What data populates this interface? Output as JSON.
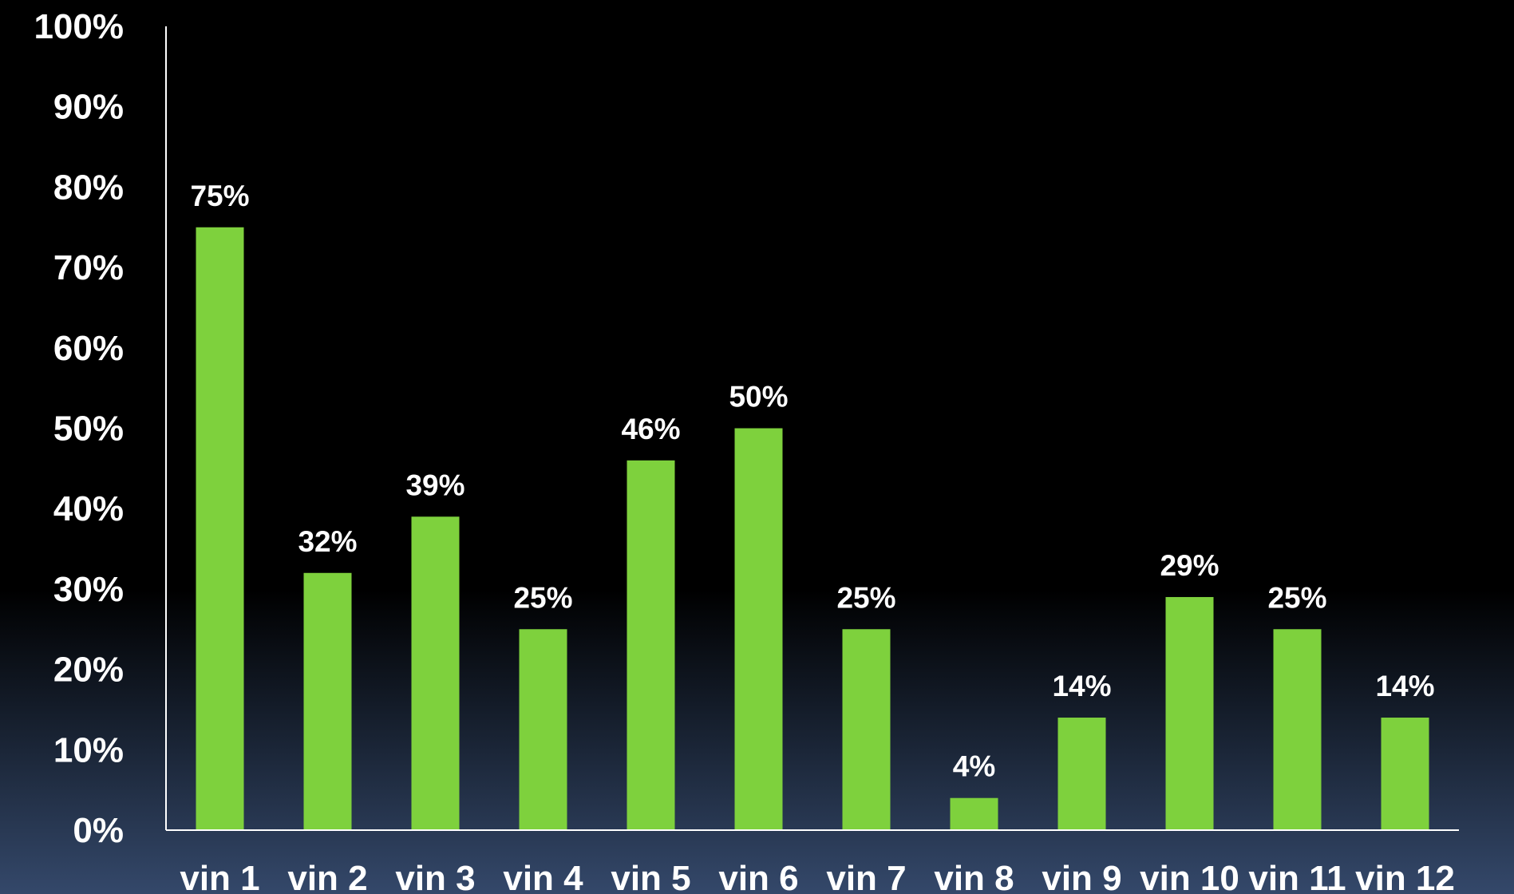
{
  "chart_data": {
    "type": "bar",
    "categories": [
      "vin 1",
      "vin 2",
      "vin 3",
      "vin 4",
      "vin 5",
      "vin 6",
      "vin 7",
      "vin 8",
      "vin 9",
      "vin 10",
      "vin 11",
      "vin 12"
    ],
    "values": [
      75,
      32,
      39,
      25,
      46,
      50,
      25,
      4,
      14,
      29,
      25,
      14
    ],
    "data_labels": [
      "75%",
      "32%",
      "39%",
      "25%",
      "46%",
      "50%",
      "25%",
      "4%",
      "14%",
      "29%",
      "25%",
      "14%"
    ],
    "yticks": [
      0,
      10,
      20,
      30,
      40,
      50,
      60,
      70,
      80,
      90,
      100
    ],
    "ytick_labels": [
      "0%",
      "10%",
      "20%",
      "30%",
      "40%",
      "50%",
      "60%",
      "70%",
      "80%",
      "90%",
      "100%"
    ],
    "ylim": [
      0,
      100
    ],
    "grid": false,
    "legend": false,
    "title": "",
    "xlabel": "",
    "ylabel": "",
    "colors": {
      "bar": "#7ed13d",
      "axis": "#ffffff",
      "text": "#ffffff"
    }
  }
}
